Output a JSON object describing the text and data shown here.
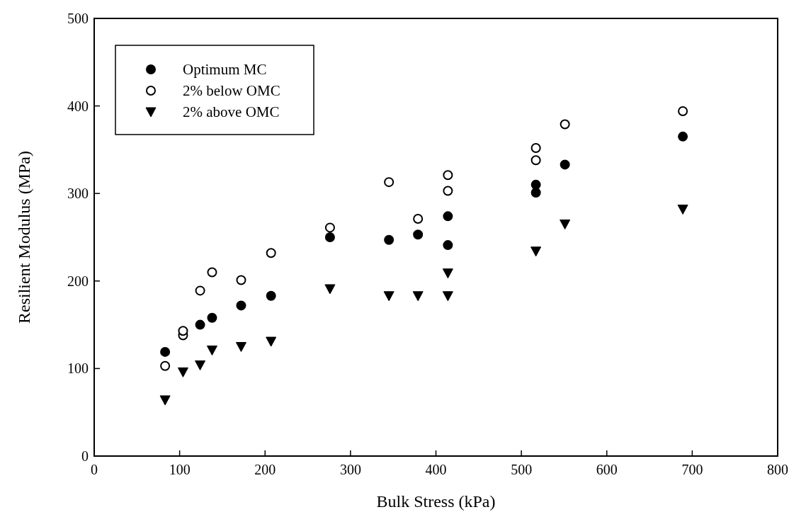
{
  "chart_data": {
    "type": "scatter",
    "xlabel": "Bulk Stress (kPa)",
    "ylabel": "Resilient Modulus (MPa)",
    "xlim": [
      0,
      800
    ],
    "ylim": [
      0,
      500
    ],
    "xticks": [
      0,
      100,
      200,
      300,
      400,
      500,
      600,
      700,
      800
    ],
    "yticks": [
      0,
      100,
      200,
      300,
      400,
      500
    ],
    "grid": false,
    "legend": "top left",
    "series": [
      {
        "name": "Optimum MC",
        "color": "#000000",
        "marker": "circle",
        "x": [
          83,
          124,
          138,
          172,
          207,
          276,
          345,
          379,
          414,
          414,
          517,
          517,
          551,
          689
        ],
        "values": [
          119,
          150,
          158,
          172,
          183,
          250,
          247,
          253,
          274,
          241,
          310,
          301,
          333,
          365
        ]
      },
      {
        "name": "2% below OMC",
        "color": "#ffffff",
        "marker": "circle",
        "x": [
          83,
          104,
          104,
          124,
          138,
          172,
          207,
          276,
          345,
          379,
          414,
          414,
          517,
          517,
          551,
          689
        ],
        "values": [
          103,
          138,
          143,
          189,
          210,
          201,
          232,
          261,
          313,
          271,
          321,
          303,
          352,
          338,
          379,
          394
        ]
      },
      {
        "name": "2% above OMC",
        "color": "#000000",
        "marker": "triangle",
        "x": [
          83,
          104,
          124,
          138,
          172,
          207,
          276,
          345,
          379,
          414,
          414,
          517,
          551,
          689
        ],
        "values": [
          64,
          96,
          104,
          121,
          125,
          131,
          191,
          183,
          183,
          209,
          183,
          234,
          265,
          282
        ]
      }
    ]
  }
}
